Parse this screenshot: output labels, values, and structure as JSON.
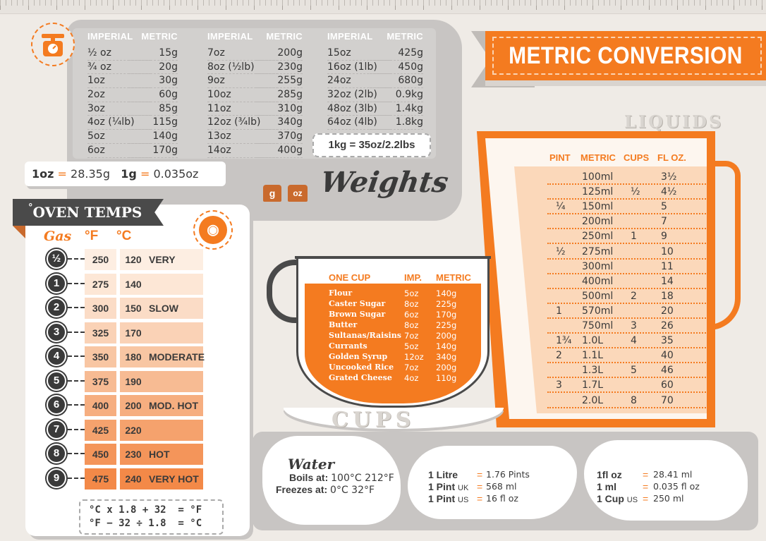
{
  "banner": {
    "title": "METRIC CONVERSION"
  },
  "weights": {
    "title": "Weights",
    "headers": {
      "imperial": "IMPERIAL",
      "metric": "METRIC"
    },
    "columns": [
      {
        "imperial": [
          "½ oz",
          "¾ oz",
          "1oz",
          "2oz",
          "3oz",
          "4oz (¼lb)",
          "5oz",
          "6oz"
        ],
        "metric": [
          "15g",
          "20g",
          "30g",
          "60g",
          "85g",
          "115g",
          "140g",
          "170g"
        ]
      },
      {
        "imperial": [
          "7oz",
          "8oz (½lb)",
          "9oz",
          "10oz",
          "11oz",
          "12oz (¾lb)",
          "13oz",
          "14oz"
        ],
        "metric": [
          "200g",
          "230g",
          "255g",
          "285g",
          "310g",
          "340g",
          "370g",
          "400g"
        ]
      },
      {
        "imperial": [
          "15oz",
          "16oz (1lb)",
          "24oz",
          "32oz (2lb)",
          "48oz (3lb)",
          "64oz (4lb)"
        ],
        "metric": [
          "425g",
          "450g",
          "680g",
          "0.9kg",
          "1.4kg",
          "1.8kg"
        ]
      }
    ],
    "kg": "1kg = 35oz/2.2lbs",
    "oz_label": "1oz",
    "oz_value": "28.35g",
    "g_label": "1g",
    "g_value": "0.035oz",
    "eq": "=",
    "icon_g": "g",
    "icon_oz": "oz"
  },
  "liquids": {
    "title": "LIQUIDS",
    "headers": {
      "pint": "PINT",
      "metric": "METRIC",
      "cups": "CUPS",
      "floz": "FL OZ."
    },
    "rows": [
      {
        "pint": "",
        "metric": "100ml",
        "cups": "",
        "floz": "3½"
      },
      {
        "pint": "",
        "metric": "125ml",
        "cups": "½",
        "floz": "4½"
      },
      {
        "pint": "¼",
        "metric": "150ml",
        "cups": "",
        "floz": "5"
      },
      {
        "pint": "",
        "metric": "200ml",
        "cups": "",
        "floz": "7"
      },
      {
        "pint": "",
        "metric": "250ml",
        "cups": "1",
        "floz": "9"
      },
      {
        "pint": "½",
        "metric": "275ml",
        "cups": "",
        "floz": "10"
      },
      {
        "pint": "",
        "metric": "300ml",
        "cups": "",
        "floz": "11"
      },
      {
        "pint": "",
        "metric": "400ml",
        "cups": "",
        "floz": "14"
      },
      {
        "pint": "",
        "metric": "500ml",
        "cups": "2",
        "floz": "18"
      },
      {
        "pint": "1",
        "metric": "570ml",
        "cups": "",
        "floz": "20"
      },
      {
        "pint": "",
        "metric": "750ml",
        "cups": "3",
        "floz": "26"
      },
      {
        "pint": "1¾",
        "metric": "1.0L",
        "cups": "4",
        "floz": "35"
      },
      {
        "pint": "2",
        "metric": "1.1L",
        "cups": "",
        "floz": "40"
      },
      {
        "pint": "",
        "metric": "1.3L",
        "cups": "5",
        "floz": "46"
      },
      {
        "pint": "3",
        "metric": "1.7L",
        "cups": "",
        "floz": "60"
      },
      {
        "pint": "",
        "metric": "2.0L",
        "cups": "8",
        "floz": "70"
      }
    ]
  },
  "oven": {
    "title": "OVEN TEMPS",
    "degree": "°",
    "headers": {
      "gas": "Gas",
      "f": "°F",
      "c": "°C"
    },
    "rows": [
      {
        "gas": "½",
        "f": "250",
        "c": "120",
        "desc": "VERY SLOW"
      },
      {
        "gas": "1",
        "f": "275",
        "c": "140",
        "desc": ""
      },
      {
        "gas": "2",
        "f": "300",
        "c": "150",
        "desc": "SLOW"
      },
      {
        "gas": "3",
        "f": "325",
        "c": "170",
        "desc": ""
      },
      {
        "gas": "4",
        "f": "350",
        "c": "180",
        "desc": "MODERATE"
      },
      {
        "gas": "5",
        "f": "375",
        "c": "190",
        "desc": ""
      },
      {
        "gas": "6",
        "f": "400",
        "c": "200",
        "desc": "MOD. HOT"
      },
      {
        "gas": "7",
        "f": "425",
        "c": "220",
        "desc": ""
      },
      {
        "gas": "8",
        "f": "450",
        "c": "230",
        "desc": "HOT"
      },
      {
        "gas": "9",
        "f": "475",
        "c": "240",
        "desc": "VERY HOT"
      }
    ],
    "formula_1": "°C x 1.8 + 32  = °F",
    "formula_2": "°F − 32 ÷ 1.8  = °C",
    "row_colors": [
      "#fdeee2",
      "#fde7d6",
      "#fbdcc6",
      "#fad2b6",
      "#f8c6a3",
      "#f7bb93",
      "#f6ae80",
      "#f5a26d",
      "#f4955a",
      "#f38948"
    ]
  },
  "cups": {
    "title": "CUPS",
    "headers": {
      "item": "ONE CUP",
      "imp": "IMP.",
      "metric": "METRIC"
    },
    "rows": [
      {
        "item": "Flour",
        "imp": "5oz",
        "metric": "140g"
      },
      {
        "item": "Caster Sugar",
        "imp": "8oz",
        "metric": "225g"
      },
      {
        "item": "Brown Sugar",
        "imp": "6oz",
        "metric": "170g"
      },
      {
        "item": "Butter",
        "imp": "8oz",
        "metric": "225g"
      },
      {
        "item": "Sultanas/Raisins",
        "imp": "7oz",
        "metric": "200g"
      },
      {
        "item": "Currants",
        "imp": "5oz",
        "metric": "140g"
      },
      {
        "item": "Golden Syrup",
        "imp": "12oz",
        "metric": "340g"
      },
      {
        "item": "Uncooked Rice",
        "imp": "7oz",
        "metric": "200g"
      },
      {
        "item": "Grated Cheese",
        "imp": "4oz",
        "metric": "110g"
      }
    ]
  },
  "water": {
    "title": "Water",
    "boils_label": "Boils at:",
    "boils_value": "100°C 212°F",
    "freezes_label": "Freezes at:",
    "freezes_value": "0°C 32°F"
  },
  "conversions_a": [
    {
      "key": "1 Litre",
      "unit": "",
      "value": "1.76 Pints"
    },
    {
      "key": "1 Pint",
      "unit": "UK",
      "value": "568 ml"
    },
    {
      "key": "1 Pint",
      "unit": "US",
      "value": "16 fl oz"
    }
  ],
  "conversions_b": [
    {
      "key": "1fl oz",
      "unit": "",
      "value": "28.41 ml"
    },
    {
      "key": "1 ml",
      "unit": "",
      "value": "0.035 fl oz"
    },
    {
      "key": "1 Cup",
      "unit": "US",
      "value": "250 ml"
    }
  ],
  "colors": {
    "accent": "#f47b20",
    "dark": "#3a3a3a",
    "panel": "#c8c5c3"
  }
}
